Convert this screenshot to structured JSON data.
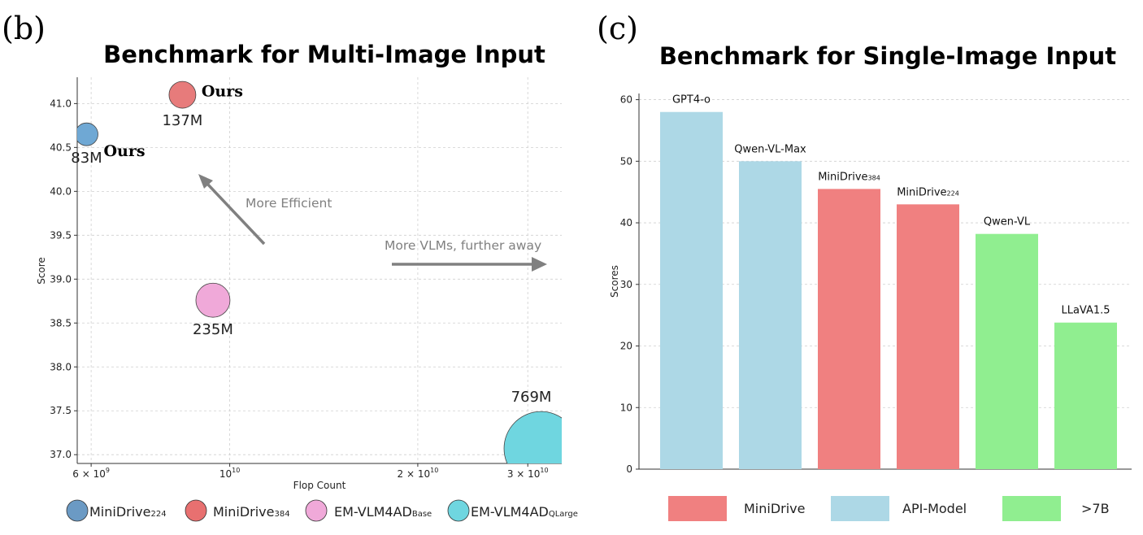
{
  "chart_data": [
    {
      "panel_label": "(b)",
      "type": "scatter",
      "title": "Benchmark for Multi-Image Input",
      "xlabel": "Flop Count",
      "ylabel": "Score",
      "xscale": "log",
      "xlim": [
        5700000000,
        34000000000
      ],
      "ylim": [
        36.9,
        41.3
      ],
      "grid": true,
      "xticks": [
        {
          "value": 6000000000,
          "base": "6 × 10",
          "exp": "9"
        },
        {
          "value": 10000000000,
          "base": "10",
          "exp": "10"
        },
        {
          "value": 20000000000,
          "base": "2 × 10",
          "exp": "10"
        },
        {
          "value": 30000000000,
          "base": "3 × 10",
          "exp": "10"
        }
      ],
      "yticks": [
        "37.0",
        "37.5",
        "38.0",
        "38.5",
        "39.0",
        "39.5",
        "40.0",
        "40.5",
        "41.0"
      ],
      "points": [
        {
          "model": "MiniDrive224",
          "x": 5900000000,
          "y": 40.65,
          "params_label": "83M",
          "params_m": 83,
          "color": "#6fa8d4",
          "tag": "Ours"
        },
        {
          "model": "MiniDrive384",
          "x": 8400000000,
          "y": 41.1,
          "params_label": "137M",
          "params_m": 137,
          "color": "#e77b7b",
          "tag": "Ours"
        },
        {
          "model": "EM-VLM4ADBase",
          "x": 9400000000,
          "y": 38.76,
          "params_label": "235M",
          "params_m": 235,
          "color": "#f0a9d9",
          "tag": ""
        },
        {
          "model": "EM-VLM4ADQLarge",
          "x": 31500000000,
          "y": 37.07,
          "params_label": "769M",
          "params_m": 769,
          "color": "#6fd6e0",
          "tag": ""
        }
      ],
      "annotations": [
        "More Efficient",
        "More VLMs, further away"
      ],
      "legend": [
        {
          "name": "MiniDrive",
          "sub": "224",
          "color": "#6b9ac4"
        },
        {
          "name": "MiniDrive",
          "sub": "384",
          "color": "#e87070"
        },
        {
          "name": "EM-VLM4AD",
          "sub": "Base",
          "color": "#f0a9d9"
        },
        {
          "name": "EM-VLM4AD",
          "sub": "QLarge",
          "color": "#6fd6e0"
        }
      ],
      "legend_placement": "bottom"
    },
    {
      "panel_label": "(c)",
      "type": "bar",
      "title": "Benchmark for Single-Image Input",
      "ylabel": "Scores",
      "ylim": [
        0,
        61
      ],
      "yticks": [
        0,
        10,
        20,
        30,
        40,
        50,
        60
      ],
      "grid": true,
      "bars": [
        {
          "label": "GPT4-o",
          "sub": "",
          "value": 58,
          "group": "API-Model"
        },
        {
          "label": "Qwen-VL-Max",
          "sub": "",
          "value": 50,
          "group": "API-Model"
        },
        {
          "label": "MiniDrive",
          "sub": "384",
          "value": 45.5,
          "group": "MiniDrive"
        },
        {
          "label": "MiniDrive",
          "sub": "224",
          "value": 43,
          "group": "MiniDrive"
        },
        {
          "label": "Qwen-VL",
          "sub": "",
          "value": 38.2,
          "group": ">7B"
        },
        {
          "label": "LLaVA1.5",
          "sub": "",
          "value": 23.8,
          "group": ">7B"
        }
      ],
      "group_colors": {
        "MiniDrive": "#f08080",
        "API-Model": "#add8e6",
        ">7B": "#90ee90"
      },
      "legend": [
        {
          "name": "MiniDrive",
          "color": "#f08080"
        },
        {
          "name": "API-Model",
          "color": "#add8e6"
        },
        {
          "name": ">7B",
          "color": "#90ee90"
        }
      ],
      "legend_placement": "bottom"
    }
  ]
}
